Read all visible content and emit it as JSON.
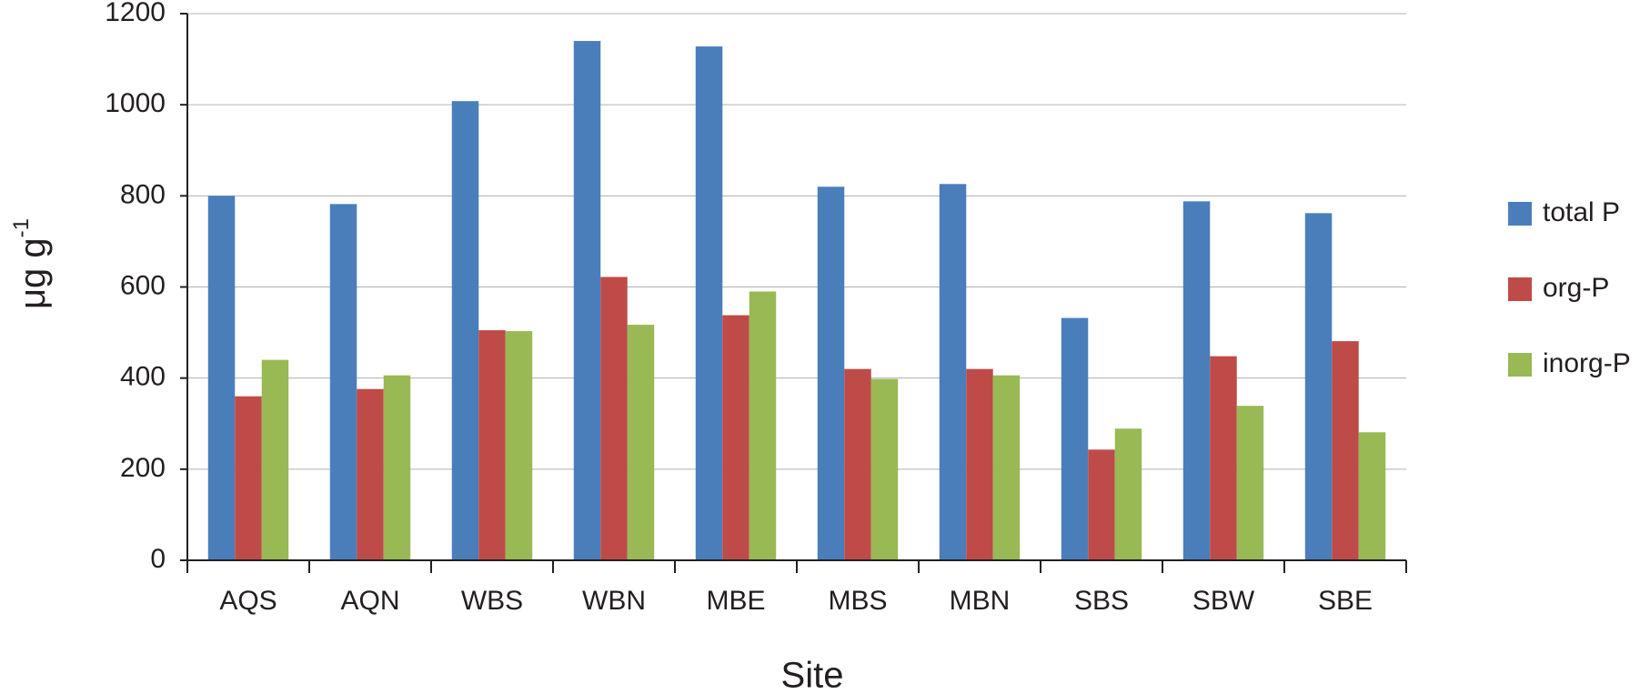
{
  "chart_data": {
    "type": "bar",
    "x_label": "Site",
    "y_label": "μg g",
    "y_label_superscript": "-1",
    "categories": [
      "AQS",
      "AQN",
      "WBS",
      "WBN",
      "MBE",
      "MBS",
      "MBN",
      "SBS",
      "SBW",
      "SBE"
    ],
    "series": [
      {
        "name": "total P",
        "color": "#4a7ebb",
        "values": [
          800,
          782,
          1008,
          1140,
          1128,
          820,
          826,
          532,
          788,
          762
        ]
      },
      {
        "name": "org-P",
        "color": "#be4b48",
        "values": [
          360,
          376,
          505,
          622,
          538,
          420,
          420,
          243,
          448,
          481
        ]
      },
      {
        "name": "inorg-P",
        "color": "#98b954",
        "values": [
          440,
          406,
          503,
          517,
          590,
          398,
          406,
          289,
          339,
          281
        ]
      }
    ],
    "ylim": [
      0,
      1200
    ],
    "yticks": [
      0,
      200,
      400,
      600,
      800,
      1000,
      1200
    ],
    "grid": true,
    "legend": "right"
  }
}
